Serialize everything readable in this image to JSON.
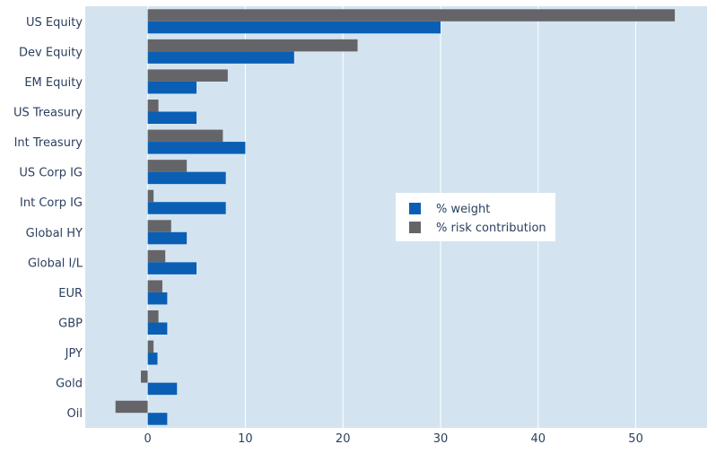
{
  "chart_data": {
    "type": "bar",
    "orientation": "horizontal",
    "categories": [
      "US Equity",
      "Dev Equity",
      "EM Equity",
      "US Treasury",
      "Int Treasury",
      "US Corp IG",
      "Int Corp IG",
      "Global HY",
      "Global I/L",
      "EUR",
      "GBP",
      "JPY",
      "Gold",
      "Oil"
    ],
    "series": [
      {
        "name": "% weight",
        "color": "#0a5fb4",
        "values": [
          30,
          15,
          5,
          5,
          10,
          8,
          8,
          4,
          5,
          2,
          2,
          1,
          3,
          2
        ]
      },
      {
        "name": "% risk contribution",
        "color": "#656569",
        "values": [
          54,
          21.5,
          8.2,
          1.1,
          7.7,
          4,
          0.6,
          2.4,
          1.8,
          1.5,
          1.1,
          0.6,
          -0.7,
          -3.3
        ]
      }
    ],
    "xlim": [
      -6.4,
      57.3
    ],
    "xticks": [
      0,
      10,
      20,
      30,
      40,
      50
    ],
    "xlabel": "",
    "ylabel": "",
    "title": "",
    "grid": true,
    "plot_background": "#d3e4f0",
    "legend": {
      "position": "center-right",
      "entries": [
        "% weight",
        "% risk contribution"
      ]
    }
  }
}
